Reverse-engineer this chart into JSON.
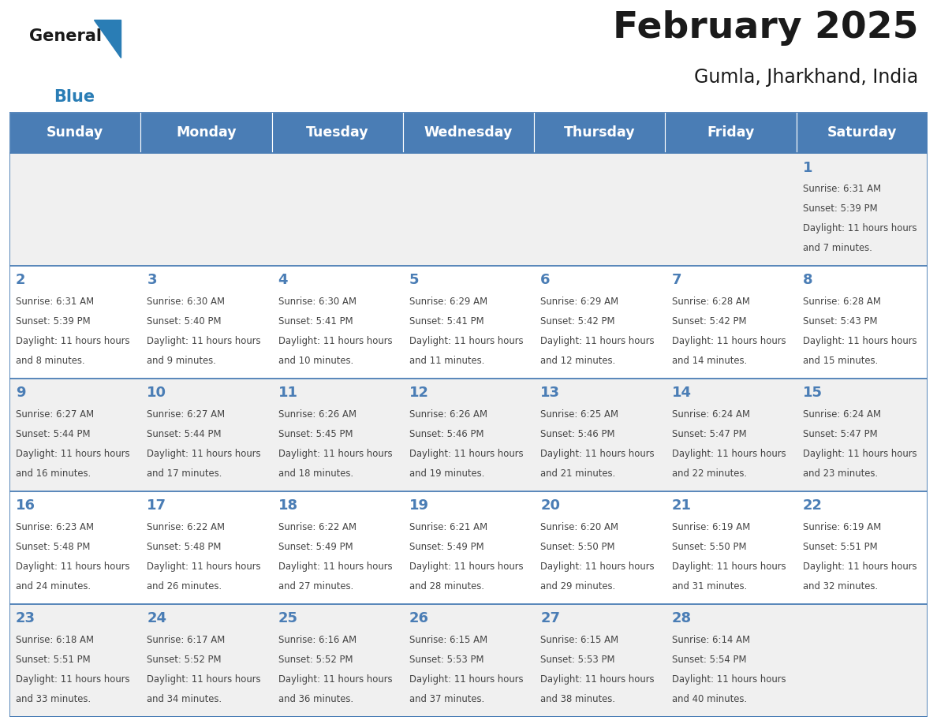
{
  "title": "February 2025",
  "subtitle": "Gumla, Jharkhand, India",
  "days_of_week": [
    "Sunday",
    "Monday",
    "Tuesday",
    "Wednesday",
    "Thursday",
    "Friday",
    "Saturday"
  ],
  "header_bg_color": "#4a7db5",
  "header_text_color": "#ffffff",
  "cell_bg_color": "#ffffff",
  "alt_cell_bg_color": "#f0f0f0",
  "grid_line_color": "#4a7db5",
  "day_number_color": "#4a7db5",
  "text_color": "#444444",
  "title_color": "#1a1a1a",
  "logo_general_color": "#1a1a1a",
  "logo_blue_color": "#2a7db5",
  "calendar_data": [
    [
      null,
      null,
      null,
      null,
      null,
      null,
      {
        "day": 1,
        "sunrise": "6:31 AM",
        "sunset": "5:39 PM",
        "daylight": "11 hours and 7 minutes"
      }
    ],
    [
      {
        "day": 2,
        "sunrise": "6:31 AM",
        "sunset": "5:39 PM",
        "daylight": "11 hours and 8 minutes"
      },
      {
        "day": 3,
        "sunrise": "6:30 AM",
        "sunset": "5:40 PM",
        "daylight": "11 hours and 9 minutes"
      },
      {
        "day": 4,
        "sunrise": "6:30 AM",
        "sunset": "5:41 PM",
        "daylight": "11 hours and 10 minutes"
      },
      {
        "day": 5,
        "sunrise": "6:29 AM",
        "sunset": "5:41 PM",
        "daylight": "11 hours and 11 minutes"
      },
      {
        "day": 6,
        "sunrise": "6:29 AM",
        "sunset": "5:42 PM",
        "daylight": "11 hours and 12 minutes"
      },
      {
        "day": 7,
        "sunrise": "6:28 AM",
        "sunset": "5:42 PM",
        "daylight": "11 hours and 14 minutes"
      },
      {
        "day": 8,
        "sunrise": "6:28 AM",
        "sunset": "5:43 PM",
        "daylight": "11 hours and 15 minutes"
      }
    ],
    [
      {
        "day": 9,
        "sunrise": "6:27 AM",
        "sunset": "5:44 PM",
        "daylight": "11 hours and 16 minutes"
      },
      {
        "day": 10,
        "sunrise": "6:27 AM",
        "sunset": "5:44 PM",
        "daylight": "11 hours and 17 minutes"
      },
      {
        "day": 11,
        "sunrise": "6:26 AM",
        "sunset": "5:45 PM",
        "daylight": "11 hours and 18 minutes"
      },
      {
        "day": 12,
        "sunrise": "6:26 AM",
        "sunset": "5:46 PM",
        "daylight": "11 hours and 19 minutes"
      },
      {
        "day": 13,
        "sunrise": "6:25 AM",
        "sunset": "5:46 PM",
        "daylight": "11 hours and 21 minutes"
      },
      {
        "day": 14,
        "sunrise": "6:24 AM",
        "sunset": "5:47 PM",
        "daylight": "11 hours and 22 minutes"
      },
      {
        "day": 15,
        "sunrise": "6:24 AM",
        "sunset": "5:47 PM",
        "daylight": "11 hours and 23 minutes"
      }
    ],
    [
      {
        "day": 16,
        "sunrise": "6:23 AM",
        "sunset": "5:48 PM",
        "daylight": "11 hours and 24 minutes"
      },
      {
        "day": 17,
        "sunrise": "6:22 AM",
        "sunset": "5:48 PM",
        "daylight": "11 hours and 26 minutes"
      },
      {
        "day": 18,
        "sunrise": "6:22 AM",
        "sunset": "5:49 PM",
        "daylight": "11 hours and 27 minutes"
      },
      {
        "day": 19,
        "sunrise": "6:21 AM",
        "sunset": "5:49 PM",
        "daylight": "11 hours and 28 minutes"
      },
      {
        "day": 20,
        "sunrise": "6:20 AM",
        "sunset": "5:50 PM",
        "daylight": "11 hours and 29 minutes"
      },
      {
        "day": 21,
        "sunrise": "6:19 AM",
        "sunset": "5:50 PM",
        "daylight": "11 hours and 31 minutes"
      },
      {
        "day": 22,
        "sunrise": "6:19 AM",
        "sunset": "5:51 PM",
        "daylight": "11 hours and 32 minutes"
      }
    ],
    [
      {
        "day": 23,
        "sunrise": "6:18 AM",
        "sunset": "5:51 PM",
        "daylight": "11 hours and 33 minutes"
      },
      {
        "day": 24,
        "sunrise": "6:17 AM",
        "sunset": "5:52 PM",
        "daylight": "11 hours and 34 minutes"
      },
      {
        "day": 25,
        "sunrise": "6:16 AM",
        "sunset": "5:52 PM",
        "daylight": "11 hours and 36 minutes"
      },
      {
        "day": 26,
        "sunrise": "6:15 AM",
        "sunset": "5:53 PM",
        "daylight": "11 hours and 37 minutes"
      },
      {
        "day": 27,
        "sunrise": "6:15 AM",
        "sunset": "5:53 PM",
        "daylight": "11 hours and 38 minutes"
      },
      {
        "day": 28,
        "sunrise": "6:14 AM",
        "sunset": "5:54 PM",
        "daylight": "11 hours and 40 minutes"
      },
      null
    ]
  ],
  "figsize": [
    11.88,
    9.18
  ],
  "dpi": 100
}
